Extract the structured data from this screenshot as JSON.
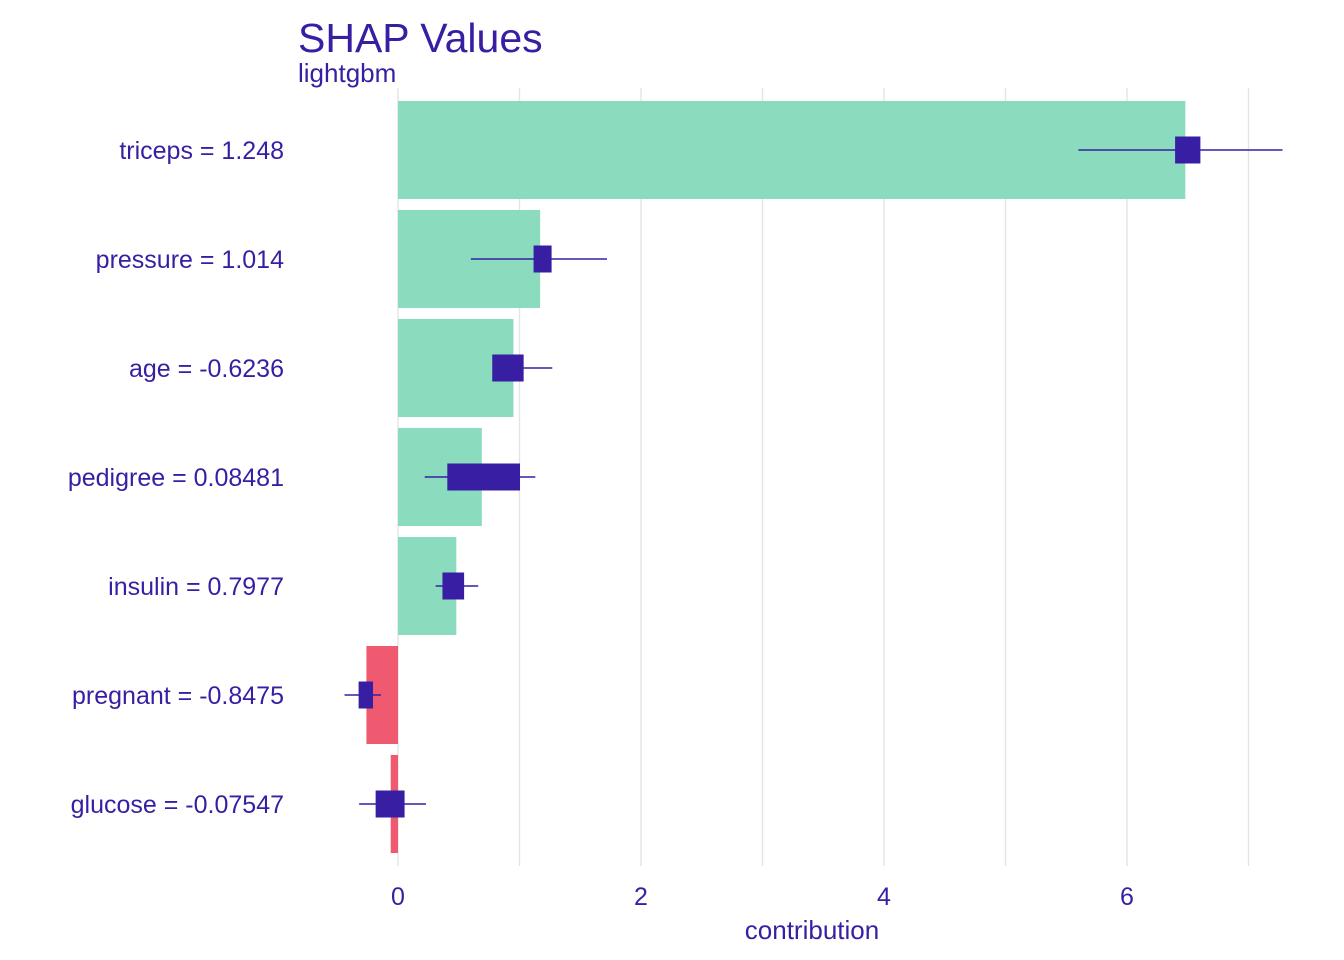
{
  "chart_data": {
    "type": "bar",
    "title": "SHAP Values",
    "subtitle": "lightgbm",
    "xlabel": "contribution",
    "xlim": [
      -0.82,
      7.35
    ],
    "x_ticks": [
      0,
      2,
      4,
      6
    ],
    "grid": true,
    "colors": {
      "positive": "#8bdcbe",
      "negative": "#f05a71",
      "box": "#371ea3",
      "text": "#371ea3",
      "grid": "#e4e4e4"
    },
    "categories": [
      "triceps = 1.248",
      "pressure = 1.014",
      "age = -0.6236",
      "pedigree = 0.08481",
      "insulin = 0.7977",
      "pregnant = -0.8475",
      "glucose = -0.07547"
    ],
    "values": [
      6.48,
      1.17,
      0.95,
      0.69,
      0.48,
      -0.26,
      -0.06
    ],
    "boxplots": [
      {
        "min": 5.6,
        "q1": 6.4,
        "q3": 6.6,
        "max": 7.28
      },
      {
        "min": 0.6,
        "q1": 1.12,
        "q3": 1.26,
        "max": 1.72
      },
      {
        "min": 0.78,
        "q1": 0.78,
        "q3": 1.03,
        "max": 1.27
      },
      {
        "min": 0.22,
        "q1": 0.41,
        "q3": 1.0,
        "max": 1.13
      },
      {
        "min": 0.31,
        "q1": 0.37,
        "q3": 0.54,
        "max": 0.66
      },
      {
        "min": -0.44,
        "q1": -0.32,
        "q3": -0.21,
        "max": -0.14
      },
      {
        "min": -0.32,
        "q1": -0.18,
        "q3": 0.05,
        "max": 0.23
      }
    ]
  }
}
